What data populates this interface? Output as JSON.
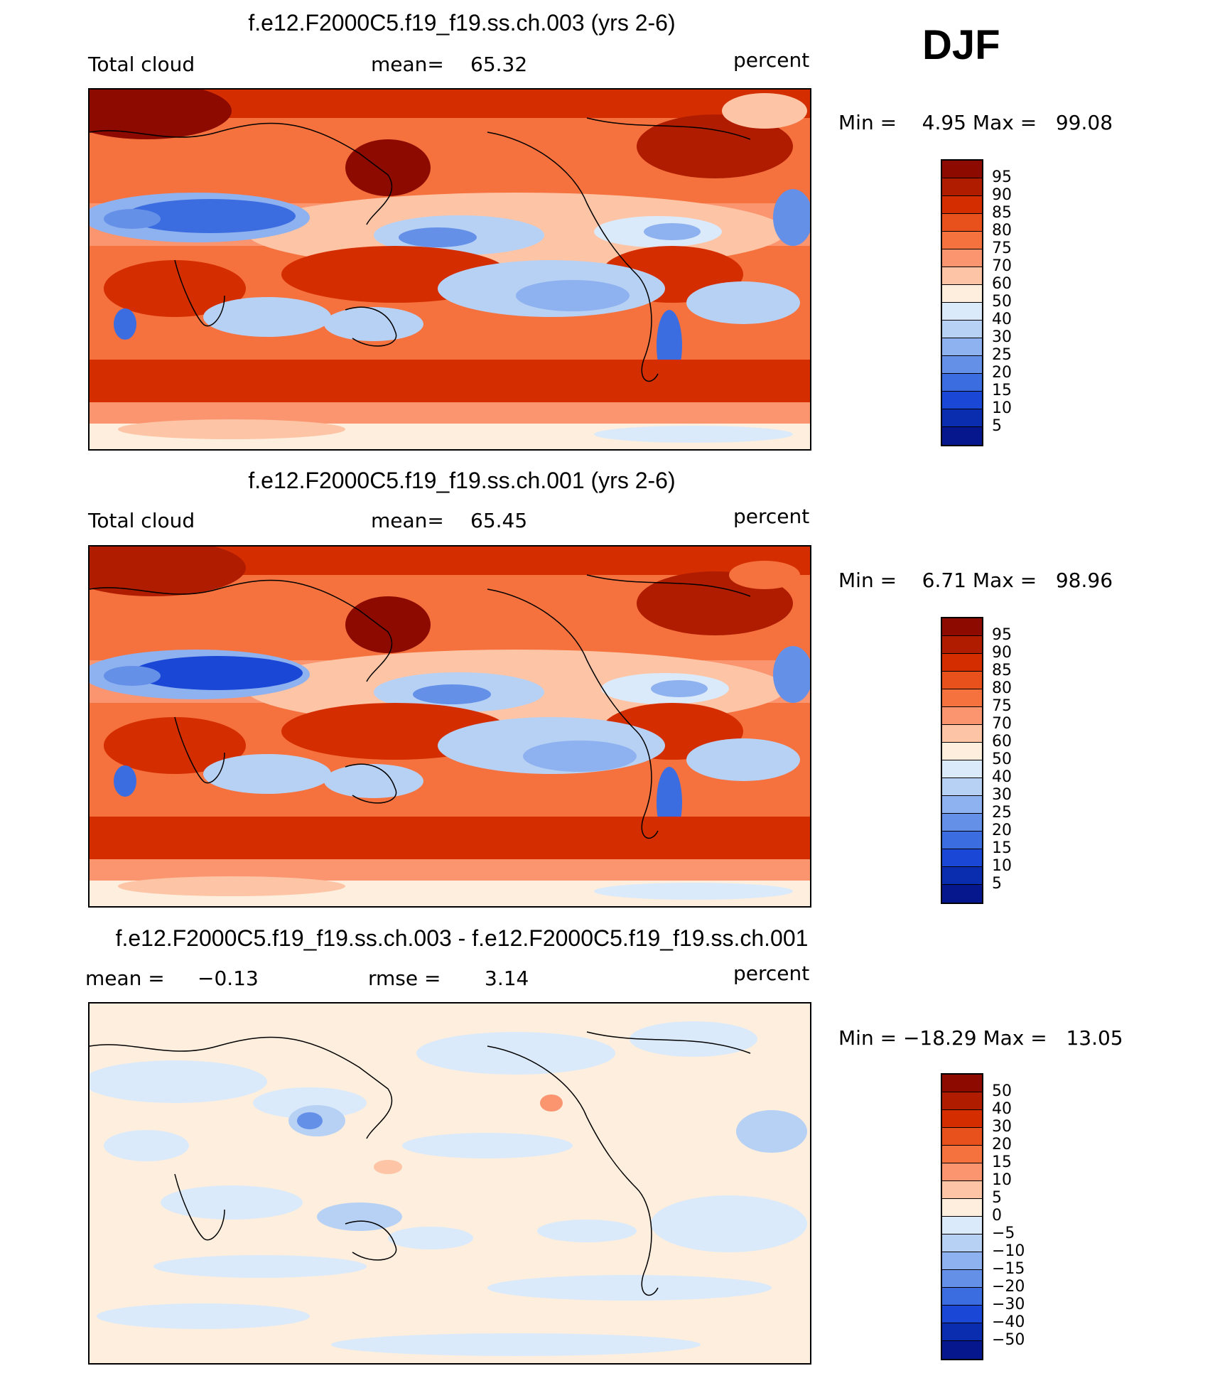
{
  "season": "DJF",
  "panels": [
    {
      "title": "f.e12.F2000C5.f19_f19.ss.ch.003 (yrs 2-6)",
      "left_label": "Total cloud",
      "stat_label": "mean=",
      "stat_value": "65.32",
      "units": "percent",
      "min_label": "Min =",
      "min_value": "4.95",
      "max_label": "Max =",
      "max_value": "99.08"
    },
    {
      "title": "f.e12.F2000C5.f19_f19.ss.ch.001 (yrs 2-6)",
      "left_label": "Total cloud",
      "stat_label": "mean=",
      "stat_value": "65.45",
      "units": "percent",
      "min_label": "Min =",
      "min_value": "6.71",
      "max_label": "Max =",
      "max_value": "98.96"
    },
    {
      "title": "f.e12.F2000C5.f19_f19.ss.ch.003 - f.e12.F2000C5.f19_f19.ss.ch.001",
      "left_label": "mean =",
      "left_value": "−0.13",
      "stat_label": "rmse =",
      "stat_value": "3.14",
      "units": "percent",
      "min_label": "Min =",
      "min_value": "−18.29",
      "max_label": "Max =",
      "max_value": "13.05"
    }
  ],
  "colorbars": {
    "field": {
      "labels": [
        "95",
        "90",
        "85",
        "80",
        "75",
        "70",
        "60",
        "50",
        "40",
        "30",
        "25",
        "20",
        "15",
        "10",
        "5"
      ],
      "colors": [
        "#8c0a00",
        "#b01c00",
        "#d42e00",
        "#e8501c",
        "#f5723e",
        "#fa9570",
        "#fdc4a6",
        "#fdeedd",
        "#dbeafa",
        "#b7d1f5",
        "#8eb1ef",
        "#6590e8",
        "#3c6de0",
        "#1a47d6",
        "#0a2db0",
        "#06168c"
      ]
    },
    "diff": {
      "labels": [
        "50",
        "40",
        "30",
        "20",
        "15",
        "10",
        "5",
        "0",
        "−5",
        "−10",
        "−15",
        "−20",
        "−30",
        "−40",
        "−50"
      ],
      "colors": [
        "#8c0a00",
        "#b01c00",
        "#d42e00",
        "#e8501c",
        "#f5723e",
        "#fa9570",
        "#fdc4a6",
        "#fdeedd",
        "#dbeafa",
        "#b7d1f5",
        "#8eb1ef",
        "#6590e8",
        "#3c6de0",
        "#1a47d6",
        "#0a2db0",
        "#06168c"
      ]
    }
  }
}
